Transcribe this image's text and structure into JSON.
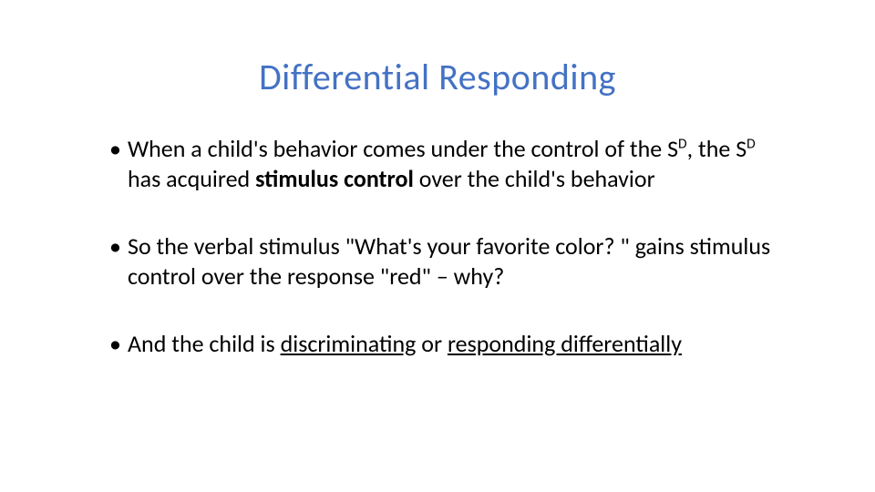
{
  "slide": {
    "title": "Differential Responding",
    "title_color": "#4472c4",
    "text_color": "#000000",
    "background_color": "#ffffff",
    "title_fontsize": 40,
    "body_fontsize": 26,
    "bullets": [
      {
        "pre1": "When a child's behavior comes under the control of the S",
        "sup1": "D",
        "mid1": ", the S",
        "sup2": "D",
        "mid2": " has acquired ",
        "bold1": "stimulus control",
        "post1": " over the child's behavior"
      },
      {
        "text": "So the verbal stimulus \"What's your favorite color? \" gains stimulus control over the response \"red\" – why?"
      },
      {
        "pre1": "And the child is ",
        "under1": "discriminating",
        "mid1": " or ",
        "under2": "responding differentially"
      }
    ]
  }
}
